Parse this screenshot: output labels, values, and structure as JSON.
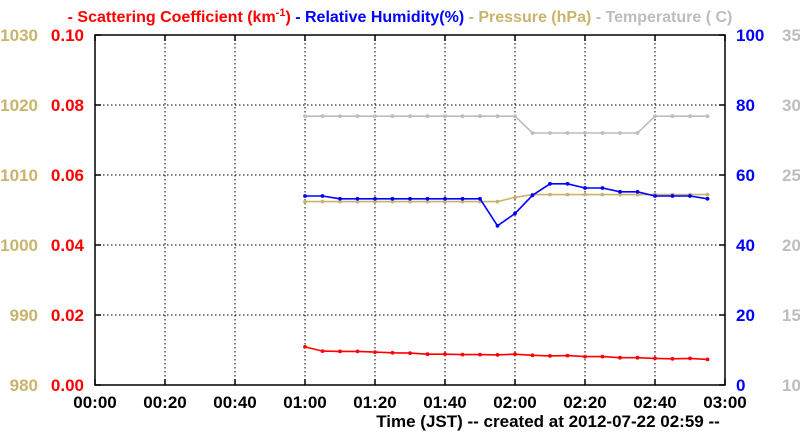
{
  "chart_data": {
    "type": "line",
    "legend": {
      "items": [
        {
          "series": "scattering",
          "dash": "-",
          "label": "Scattering Coefficient (km",
          "superscript": "-1",
          "suffix": ")"
        },
        {
          "series": "humidity",
          "dash": "-",
          "label": "Relative Humidity(%)",
          "superscript": "",
          "suffix": ""
        },
        {
          "series": "pressure",
          "dash": "-",
          "label": "Pressure (hPa)",
          "superscript": "",
          "suffix": ""
        },
        {
          "series": "temperature",
          "dash": "-",
          "label": "Temperature (",
          "superscript": "",
          "suffix": "C)"
        }
      ]
    },
    "xlabel": "Time (JST)  -- created at 2012-07-22 02:59 --",
    "x_ticks": [
      "00:00",
      "00:20",
      "00:40",
      "01:00",
      "01:20",
      "01:40",
      "02:00",
      "02:20",
      "02:40",
      "03:00"
    ],
    "x_range_minutes": [
      0,
      180
    ],
    "grid": true,
    "axes": {
      "pressure": {
        "side": "left-outer",
        "color": "#c8b46e",
        "ticks": [
          "980",
          "990",
          "1000",
          "1010",
          "1020",
          "1030"
        ],
        "range": [
          980,
          1030
        ]
      },
      "scattering": {
        "side": "left-inner",
        "color": "#ff0000",
        "ticks": [
          "0.00",
          "0.02",
          "0.04",
          "0.06",
          "0.08",
          "0.10"
        ],
        "range": [
          0,
          0.1
        ]
      },
      "humidity": {
        "side": "right-inner",
        "color": "#0000ff",
        "ticks": [
          "0",
          "20",
          "40",
          "60",
          "80",
          "100"
        ],
        "range": [
          0,
          100
        ]
      },
      "temperature": {
        "side": "right-outer",
        "color": "#bdbdbd",
        "ticks": [
          "10",
          "15",
          "20",
          "25",
          "30",
          "35"
        ],
        "range": [
          10,
          35
        ]
      }
    },
    "x_minutes": [
      60,
      65,
      70,
      75,
      80,
      85,
      90,
      95,
      100,
      105,
      110,
      115,
      120,
      125,
      130,
      135,
      140,
      145,
      150,
      155,
      160,
      165,
      170,
      175
    ],
    "series": [
      {
        "name": "Temperature",
        "key": "temperature",
        "axis": "temperature",
        "color": "#bdbdbd",
        "values": [
          29.2,
          29.2,
          29.2,
          29.2,
          29.2,
          29.2,
          29.2,
          29.2,
          29.2,
          29.2,
          29.2,
          29.2,
          29.2,
          28.0,
          28.0,
          28.0,
          28.0,
          28.0,
          28.0,
          28.0,
          29.2,
          29.2,
          29.2,
          29.2
        ]
      },
      {
        "name": "Pressure",
        "key": "pressure",
        "axis": "pressure",
        "color": "#c8b46e",
        "values": [
          1006.2,
          1006.2,
          1006.2,
          1006.2,
          1006.2,
          1006.2,
          1006.2,
          1006.2,
          1006.2,
          1006.2,
          1006.2,
          1006.2,
          1006.8,
          1007.2,
          1007.2,
          1007.2,
          1007.2,
          1007.2,
          1007.2,
          1007.2,
          1007.2,
          1007.2,
          1007.2,
          1007.2
        ]
      },
      {
        "name": "Relative Humidity",
        "key": "humidity",
        "axis": "humidity",
        "color": "#0000ff",
        "values": [
          54.0,
          54.0,
          53.2,
          53.2,
          53.2,
          53.2,
          53.2,
          53.2,
          53.2,
          53.2,
          53.2,
          45.5,
          49.0,
          54.2,
          57.5,
          57.5,
          56.3,
          56.3,
          55.2,
          55.2,
          54.0,
          54.0,
          54.0,
          53.2
        ]
      },
      {
        "name": "Scattering Coefficient",
        "key": "scattering",
        "axis": "scattering",
        "color": "#ff0000",
        "values": [
          0.0109,
          0.0097,
          0.0096,
          0.0096,
          0.0094,
          0.0092,
          0.0091,
          0.0088,
          0.0088,
          0.0087,
          0.0087,
          0.0086,
          0.0088,
          0.0085,
          0.0083,
          0.0084,
          0.0081,
          0.0081,
          0.0078,
          0.0078,
          0.0076,
          0.0075,
          0.0076,
          0.0073
        ]
      }
    ]
  }
}
